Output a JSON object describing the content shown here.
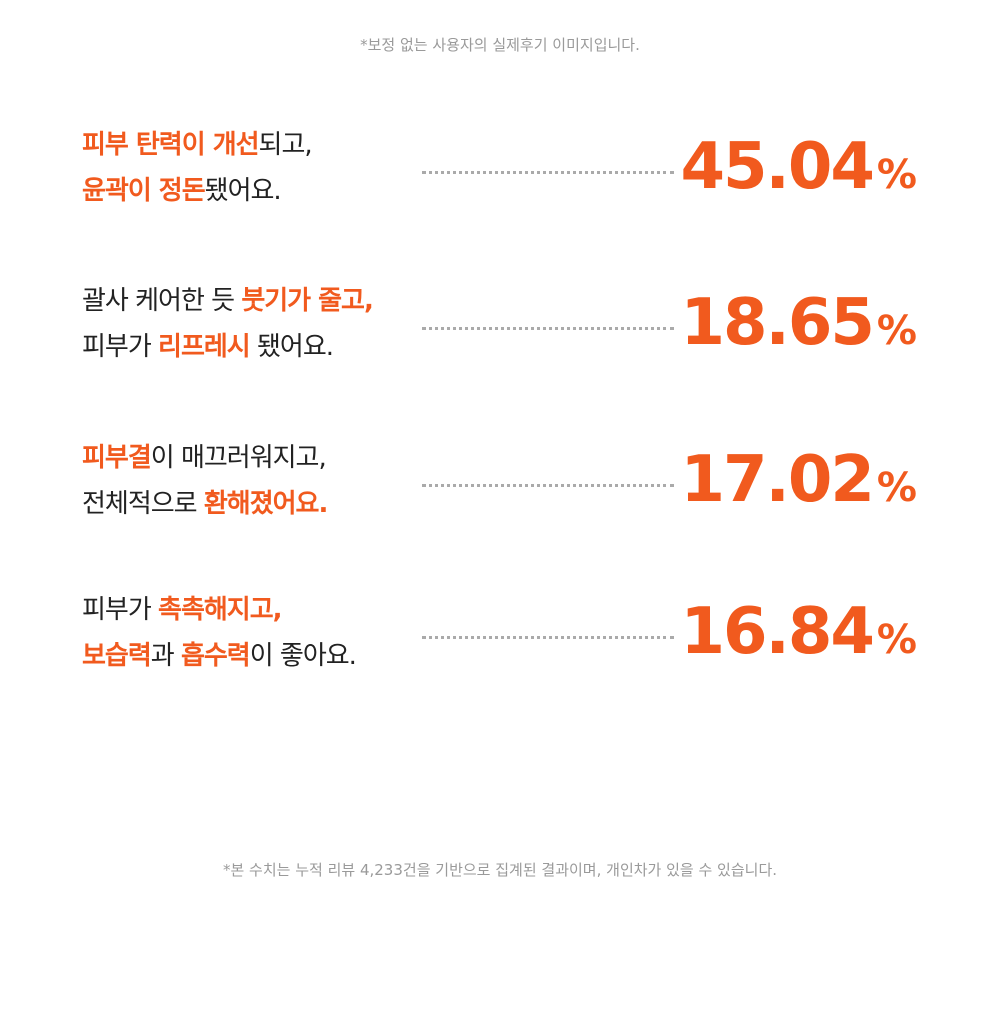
{
  "header": {
    "note": "*보정 없는 사용자의 실제후기 이미지입니다."
  },
  "highlight_color": "#f15a1e",
  "items": [
    {
      "lines": [
        [
          {
            "text": "피부 탄력이 개선",
            "highlight": true
          },
          {
            "text": "되고,",
            "highlight": false
          }
        ],
        [
          {
            "text": "윤곽이 정돈",
            "highlight": true
          },
          {
            "text": "됐어요.",
            "highlight": false
          }
        ]
      ],
      "value": "45.04",
      "unit": "%"
    },
    {
      "lines": [
        [
          {
            "text": "괄사 케어한 듯 ",
            "highlight": false
          },
          {
            "text": "붓기가 줄고,",
            "highlight": true
          }
        ],
        [
          {
            "text": "피부가 ",
            "highlight": false
          },
          {
            "text": "리프레시",
            "highlight": true
          },
          {
            "text": " 됐어요.",
            "highlight": false
          }
        ]
      ],
      "value": "18.65",
      "unit": "%"
    },
    {
      "lines": [
        [
          {
            "text": "피부결",
            "highlight": true
          },
          {
            "text": "이 매끄러워지고,",
            "highlight": false
          }
        ],
        [
          {
            "text": "전체적으로 ",
            "highlight": false
          },
          {
            "text": "환해졌어요.",
            "highlight": true
          }
        ]
      ],
      "value": "17.02",
      "unit": "%"
    },
    {
      "lines": [
        [
          {
            "text": "피부가 ",
            "highlight": false
          },
          {
            "text": "촉촉해지고,",
            "highlight": true
          }
        ],
        [
          {
            "text": "보습력",
            "highlight": true
          },
          {
            "text": "과 ",
            "highlight": false
          },
          {
            "text": "흡수력",
            "highlight": true
          },
          {
            "text": "이 좋아요.",
            "highlight": false
          }
        ]
      ],
      "value": "16.84",
      "unit": "%"
    }
  ],
  "footer": {
    "note": "*본 수치는 누적 리뷰 4,233건을 기반으로 집계된 결과이며, 개인차가 있을 수 있습니다."
  }
}
